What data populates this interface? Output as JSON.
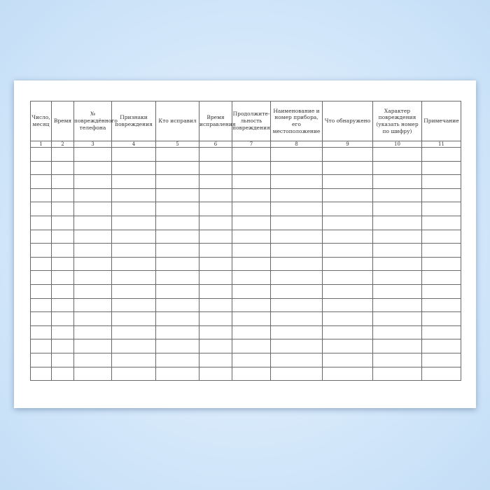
{
  "table": {
    "headers": [
      "Число, месяц",
      "Время",
      "№ повреждённого телефона",
      "Признаки повреждения",
      "Кто исправил",
      "Время исправления",
      "Продолжите-льность повреждения",
      "Наименование и номер прибора, его местоположение",
      "Что обнаружено",
      "Характер повреждения (указать номер по шифру)",
      "Примечание"
    ],
    "column_numbers": [
      "1",
      "2",
      "3",
      "4",
      "5",
      "6",
      "7",
      "8",
      "9",
      "10",
      "11"
    ],
    "empty_rows": 17
  }
}
